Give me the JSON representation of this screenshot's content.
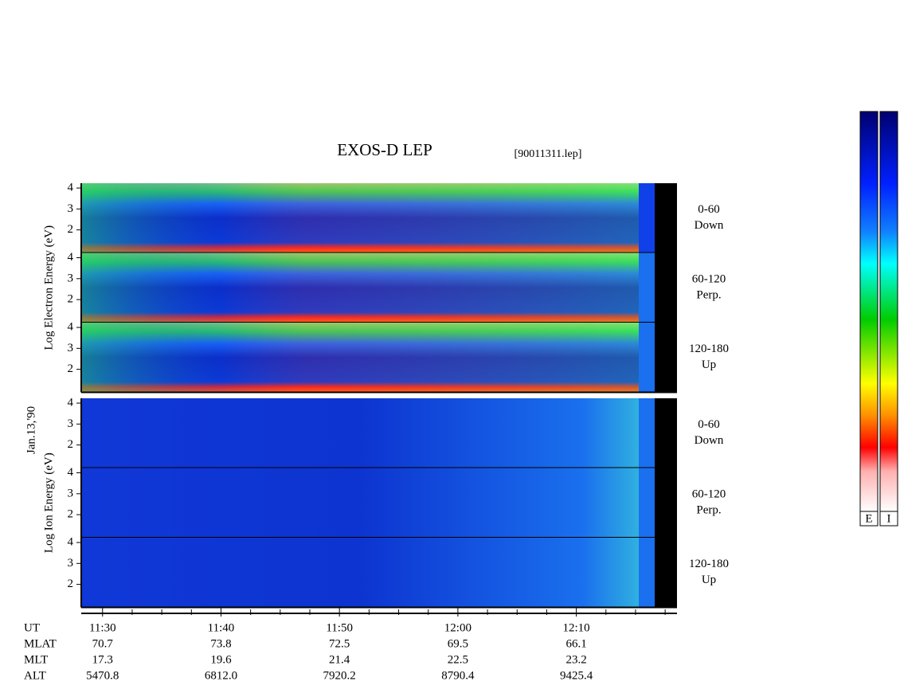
{
  "title": "EXOS-D LEP",
  "file": "[90011311.lep]",
  "date": "Jan.13,'90",
  "groups": [
    {
      "label": "Log Electron Energy (eV)",
      "panels": [
        {
          "angle": "0-60",
          "direction": "Down",
          "ylim": [
            0.9,
            4.23
          ],
          "yticks": [
            2,
            3,
            4
          ]
        },
        {
          "angle": "60-120",
          "direction": "Perp.",
          "ylim": [
            0.9,
            4.23
          ],
          "yticks": [
            2,
            3,
            4
          ]
        },
        {
          "angle": "120-180",
          "direction": "Up",
          "ylim": [
            0.9,
            4.23
          ],
          "yticks": [
            2,
            3,
            4
          ]
        }
      ]
    },
    {
      "label": "Log Ion Energy (eV)",
      "panels": [
        {
          "angle": "0-60",
          "direction": "Down",
          "ylim": [
            0.9,
            4.23
          ],
          "yticks": [
            2,
            3,
            4
          ]
        },
        {
          "angle": "60-120",
          "direction": "Perp.",
          "ylim": [
            0.9,
            4.23
          ],
          "yticks": [
            2,
            3,
            4
          ]
        },
        {
          "angle": "120-180",
          "direction": "Up",
          "ylim": [
            0.9,
            4.23
          ],
          "yticks": [
            2,
            3,
            4
          ]
        }
      ]
    }
  ],
  "xlim": [
    688.2,
    738.5
  ],
  "xticks": [
    {
      "value": 690,
      "label": "11:30"
    },
    {
      "value": 700,
      "label": "11:40"
    },
    {
      "value": 710,
      "label": "11:50"
    },
    {
      "value": 720,
      "label": "12:00"
    },
    {
      "value": 730,
      "label": "12:10"
    }
  ],
  "xminorticks": [
    692.5,
    695,
    697.5,
    702.5,
    705,
    707.5,
    712.5,
    715,
    717.5,
    722.5,
    725,
    727.5,
    732.5,
    735,
    737.5
  ],
  "orbit": {
    "labels": [
      "UT",
      "MLAT",
      "MLT",
      "ALT"
    ],
    "rows": [
      [
        "70.7",
        "73.8",
        "72.5",
        "69.5",
        "66.1"
      ],
      [
        "17.3",
        "19.6",
        "21.4",
        "22.5",
        "23.2"
      ],
      [
        "5470.8",
        "6812.0",
        "7920.2",
        "8790.4",
        "9425.4"
      ]
    ]
  },
  "colorbars": [
    "E",
    "I"
  ]
}
